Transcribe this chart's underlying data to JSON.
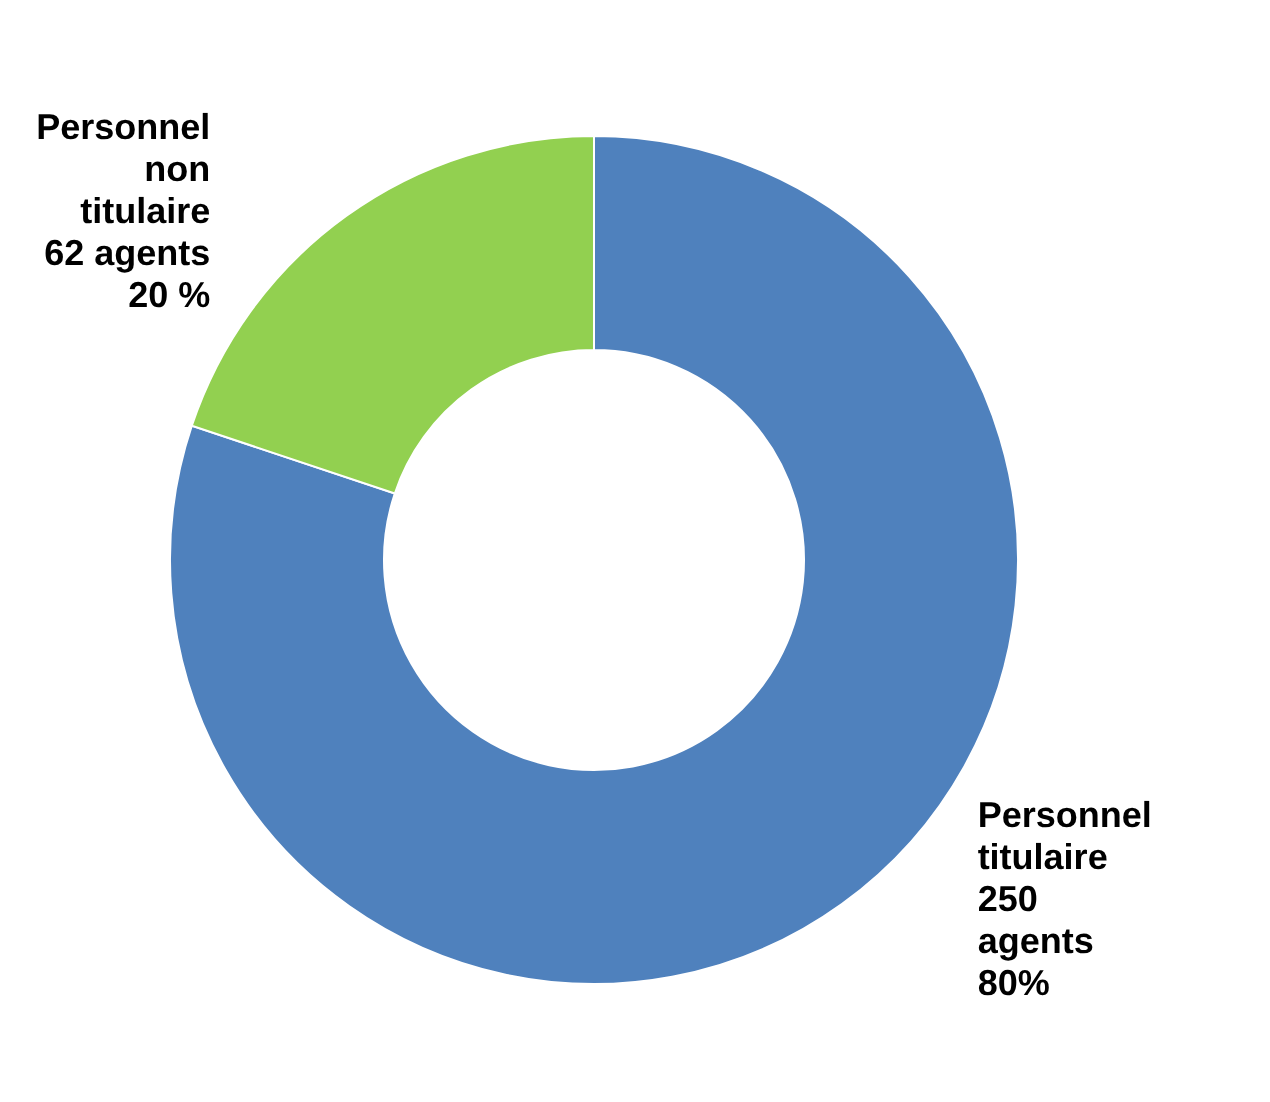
{
  "chart_data": {
    "type": "donut",
    "categories": [
      "Personnel titulaire",
      "Personnel non titulaire"
    ],
    "values": [
      250,
      62
    ],
    "colors": [
      "#4f81bd",
      "#92d050"
    ],
    "value_labels": [
      "250 agents 80%",
      "62 agents 20 %"
    ]
  }
}
